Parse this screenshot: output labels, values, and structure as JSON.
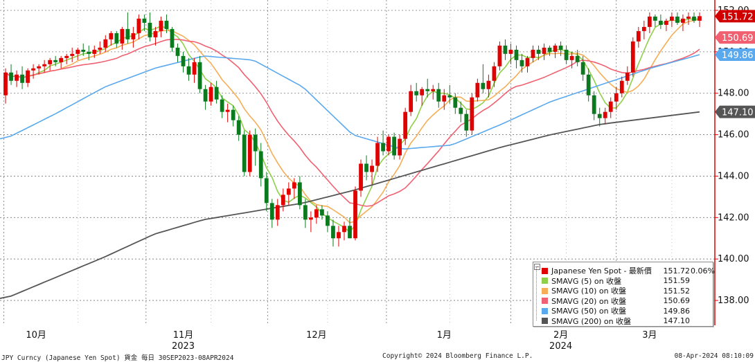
{
  "chart_data": {
    "type": "candlestick",
    "security": "JPY Curncy (Japanese Yen Spot)",
    "y_ticks": [
      "138.00",
      "140.00",
      "142.00",
      "144.00",
      "146.00",
      "148.00",
      "150.00",
      "152.00"
    ],
    "ylim": [
      136.8,
      152.5
    ],
    "x_axis": {
      "month_labels": [
        "10月",
        "11月",
        "12月",
        "1月",
        "2月",
        "3月"
      ],
      "year_labels": [
        "2023",
        "2024"
      ]
    },
    "price_labels": [
      {
        "value": "151.72",
        "color": "#d00000",
        "for": "Japanese Yen Spot"
      },
      {
        "value": "150.69",
        "color": "#f06070",
        "for": "SMAVG (20)"
      },
      {
        "value": "149.86",
        "color": "#5aa8ee",
        "for": "SMAVG (50)"
      },
      {
        "value": "147.10",
        "color": "#555555",
        "for": "SMAVG (200)"
      }
    ],
    "candles": [
      [
        147.9,
        149.2,
        147.5,
        149.0
      ],
      [
        149.0,
        149.4,
        148.4,
        148.6
      ],
      [
        148.6,
        149.1,
        148.3,
        148.9
      ],
      [
        148.9,
        149.3,
        148.2,
        148.5
      ],
      [
        148.5,
        149.2,
        148.3,
        149.1
      ],
      [
        149.1,
        149.4,
        148.7,
        149.2
      ],
      [
        149.2,
        149.4,
        148.9,
        149.3
      ],
      [
        149.3,
        149.6,
        149.0,
        149.4
      ],
      [
        149.4,
        149.7,
        149.1,
        149.6
      ],
      [
        149.6,
        149.8,
        149.3,
        149.5
      ],
      [
        149.5,
        149.8,
        149.2,
        149.7
      ],
      [
        149.7,
        149.9,
        149.4,
        149.8
      ],
      [
        149.8,
        150.2,
        149.5,
        149.9
      ],
      [
        149.9,
        150.2,
        149.6,
        150.1
      ],
      [
        150.1,
        150.4,
        149.8,
        150.0
      ],
      [
        150.0,
        150.3,
        149.6,
        149.9
      ],
      [
        149.9,
        150.3,
        149.7,
        150.1
      ],
      [
        150.1,
        150.5,
        149.9,
        150.2
      ],
      [
        150.2,
        150.8,
        150.0,
        150.6
      ],
      [
        150.6,
        151.0,
        150.3,
        150.9
      ],
      [
        150.9,
        151.0,
        150.2,
        150.4
      ],
      [
        150.4,
        151.2,
        150.1,
        151.1
      ],
      [
        151.1,
        151.9,
        150.4,
        150.6
      ],
      [
        150.6,
        151.2,
        150.2,
        150.9
      ],
      [
        150.9,
        151.8,
        150.6,
        151.6
      ],
      [
        151.6,
        151.8,
        151.0,
        151.4
      ],
      [
        151.4,
        151.9,
        150.5,
        150.7
      ],
      [
        150.7,
        151.2,
        150.3,
        151.0
      ],
      [
        151.0,
        151.7,
        150.7,
        151.5
      ],
      [
        151.5,
        151.8,
        150.9,
        151.1
      ],
      [
        151.1,
        151.2,
        150.0,
        150.2
      ],
      [
        150.2,
        150.4,
        149.5,
        149.8
      ],
      [
        149.8,
        150.0,
        149.0,
        149.3
      ],
      [
        149.3,
        149.7,
        148.6,
        148.9
      ],
      [
        148.9,
        149.7,
        148.5,
        149.5
      ],
      [
        149.5,
        149.8,
        148.0,
        148.2
      ],
      [
        148.2,
        148.4,
        147.2,
        147.6
      ],
      [
        147.6,
        148.5,
        147.4,
        148.3
      ],
      [
        148.3,
        148.6,
        147.5,
        147.7
      ],
      [
        147.7,
        147.9,
        146.8,
        147.1
      ],
      [
        147.1,
        147.5,
        146.6,
        147.2
      ],
      [
        147.2,
        147.4,
        146.4,
        146.7
      ],
      [
        146.7,
        146.9,
        145.7,
        146.0
      ],
      [
        146.0,
        146.2,
        144.0,
        144.2
      ],
      [
        144.2,
        146.2,
        144.0,
        146.0
      ],
      [
        146.0,
        146.3,
        144.5,
        145.2
      ],
      [
        145.2,
        145.6,
        143.5,
        143.9
      ],
      [
        143.9,
        144.2,
        142.3,
        142.7
      ],
      [
        142.7,
        142.9,
        141.5,
        141.9
      ],
      [
        141.9,
        142.9,
        141.6,
        142.6
      ],
      [
        142.6,
        143.4,
        142.3,
        143.1
      ],
      [
        143.1,
        143.7,
        142.6,
        143.4
      ],
      [
        143.4,
        143.9,
        142.9,
        143.7
      ],
      [
        143.7,
        144.0,
        142.4,
        142.6
      ],
      [
        142.6,
        142.9,
        141.5,
        141.9
      ],
      [
        141.9,
        142.3,
        141.3,
        142.0
      ],
      [
        142.0,
        142.6,
        141.7,
        142.4
      ],
      [
        142.4,
        142.6,
        141.9,
        142.1
      ],
      [
        142.1,
        142.3,
        141.3,
        141.6
      ],
      [
        141.6,
        141.9,
        140.6,
        141.0
      ],
      [
        141.0,
        141.6,
        140.6,
        141.3
      ],
      [
        141.3,
        141.8,
        140.9,
        141.6
      ],
      [
        141.6,
        142.0,
        141.0,
        141.0
      ],
      [
        141.0,
        143.5,
        140.9,
        143.3
      ],
      [
        143.3,
        144.8,
        143.0,
        144.6
      ],
      [
        144.6,
        145.0,
        143.8,
        144.2
      ],
      [
        144.2,
        144.8,
        143.6,
        144.5
      ],
      [
        144.5,
        145.9,
        144.2,
        145.6
      ],
      [
        145.6,
        146.2,
        145.0,
        145.2
      ],
      [
        145.2,
        146.0,
        145.0,
        145.9
      ],
      [
        145.9,
        146.1,
        144.8,
        145.0
      ],
      [
        145.0,
        146.0,
        144.8,
        145.8
      ],
      [
        145.8,
        147.3,
        145.5,
        147.1
      ],
      [
        147.1,
        148.4,
        146.9,
        148.1
      ],
      [
        148.1,
        148.5,
        147.6,
        147.9
      ],
      [
        147.9,
        148.3,
        147.4,
        148.2
      ],
      [
        148.2,
        148.7,
        147.8,
        148.1
      ],
      [
        148.1,
        148.4,
        147.7,
        148.2
      ],
      [
        148.2,
        148.5,
        147.3,
        147.6
      ],
      [
        147.6,
        148.2,
        147.2,
        147.9
      ],
      [
        147.9,
        148.4,
        147.5,
        147.8
      ],
      [
        147.8,
        148.0,
        147.0,
        147.3
      ],
      [
        147.3,
        147.6,
        146.6,
        147.0
      ],
      [
        147.0,
        147.2,
        145.9,
        146.2
      ],
      [
        146.2,
        148.0,
        146.0,
        147.8
      ],
      [
        147.8,
        148.7,
        147.6,
        148.5
      ],
      [
        148.5,
        149.4,
        148.0,
        148.2
      ],
      [
        148.2,
        148.9,
        147.8,
        148.6
      ],
      [
        148.6,
        149.5,
        148.3,
        149.3
      ],
      [
        149.3,
        150.5,
        149.1,
        150.3
      ],
      [
        150.3,
        150.6,
        149.6,
        149.9
      ],
      [
        149.9,
        150.4,
        149.4,
        150.1
      ],
      [
        150.1,
        150.3,
        149.2,
        149.6
      ],
      [
        149.6,
        149.9,
        149.0,
        149.3
      ],
      [
        149.3,
        149.8,
        149.0,
        149.7
      ],
      [
        149.7,
        150.3,
        149.5,
        150.1
      ],
      [
        150.1,
        150.3,
        149.6,
        149.9
      ],
      [
        149.9,
        150.4,
        149.6,
        150.2
      ],
      [
        150.2,
        150.3,
        149.8,
        150.0
      ],
      [
        150.0,
        150.4,
        149.7,
        150.3
      ],
      [
        150.3,
        150.5,
        149.8,
        150.1
      ],
      [
        150.1,
        150.3,
        149.4,
        149.6
      ],
      [
        149.6,
        150.0,
        149.2,
        149.8
      ],
      [
        149.8,
        150.1,
        149.3,
        149.5
      ],
      [
        149.5,
        149.8,
        148.6,
        148.9
      ],
      [
        148.9,
        149.2,
        147.6,
        147.9
      ],
      [
        147.9,
        148.1,
        146.7,
        147.0
      ],
      [
        147.0,
        147.3,
        146.4,
        146.8
      ],
      [
        146.8,
        147.3,
        146.5,
        147.1
      ],
      [
        147.1,
        147.8,
        146.8,
        147.6
      ],
      [
        147.6,
        148.3,
        147.2,
        148.0
      ],
      [
        148.0,
        148.8,
        147.8,
        148.6
      ],
      [
        148.6,
        149.3,
        148.4,
        149.0
      ],
      [
        149.0,
        150.7,
        148.8,
        150.5
      ],
      [
        150.5,
        151.2,
        150.2,
        151.0
      ],
      [
        151.0,
        151.5,
        150.6,
        151.2
      ],
      [
        151.2,
        151.9,
        150.9,
        151.7
      ],
      [
        151.7,
        151.8,
        151.2,
        151.5
      ],
      [
        151.5,
        151.8,
        151.1,
        151.3
      ],
      [
        151.3,
        151.6,
        151.0,
        151.5
      ],
      [
        151.5,
        151.9,
        151.2,
        151.7
      ],
      [
        151.7,
        151.9,
        151.3,
        151.4
      ],
      [
        151.4,
        151.8,
        151.0,
        151.6
      ],
      [
        151.6,
        151.9,
        151.3,
        151.7
      ],
      [
        151.7,
        151.9,
        151.4,
        151.5
      ],
      [
        151.5,
        151.9,
        151.2,
        151.72
      ]
    ],
    "series": [
      {
        "name": "SMAVG (5)",
        "color": "#8fd04a"
      },
      {
        "name": "SMAVG (10)",
        "color": "#f5ae55"
      },
      {
        "name": "SMAVG (20)",
        "color": "#f06070"
      },
      {
        "name": "SMAVG (50)",
        "color": "#5aa8ee",
        "values": [
          145.8,
          147.0,
          148.3,
          149.2,
          149.8,
          149.6,
          148.3,
          146.0,
          145.3,
          145.5,
          146.5,
          147.6,
          148.4,
          149.2,
          149.86
        ]
      },
      {
        "name": "SMAVG (200)",
        "color": "#555555",
        "values": [
          138.1,
          139.1,
          140.1,
          141.2,
          141.9,
          142.3,
          142.7,
          143.3,
          144.0,
          144.7,
          145.4,
          146.0,
          146.5,
          146.8,
          147.1
        ]
      }
    ]
  },
  "legend": {
    "rows": [
      {
        "swatch": "#e00000",
        "name": "Japanese Yen Spot - 最新價",
        "value": "151.72",
        "change": "0.06%"
      },
      {
        "swatch": "#8fd04a",
        "name": "SMAVG (5)  on 收盤",
        "value": "151.59",
        "change": ""
      },
      {
        "swatch": "#f5ae55",
        "name": "SMAVG (10)  on 收盤",
        "value": "151.52",
        "change": ""
      },
      {
        "swatch": "#f06070",
        "name": "SMAVG (20)  on 收盤",
        "value": "150.69",
        "change": ""
      },
      {
        "swatch": "#5aa8ee",
        "name": "SMAVG (50)  on 收盤",
        "value": "149.86",
        "change": ""
      },
      {
        "swatch": "#555555",
        "name": "SMAVG (200)  on 收盤",
        "value": "147.10",
        "change": ""
      }
    ]
  },
  "footer": {
    "left": "JPY Curncy (Japanese Yen Spot)  貨金  每日 30SEP2023-08APR2024",
    "center": "Copyright© 2024 Bloomberg Finance L.P.",
    "right": "08-Apr-2024 08:10:09"
  },
  "colors": {
    "up": "#e00000",
    "down": "#0b7a1e",
    "grid": "#777777",
    "axis": "#e00000"
  }
}
